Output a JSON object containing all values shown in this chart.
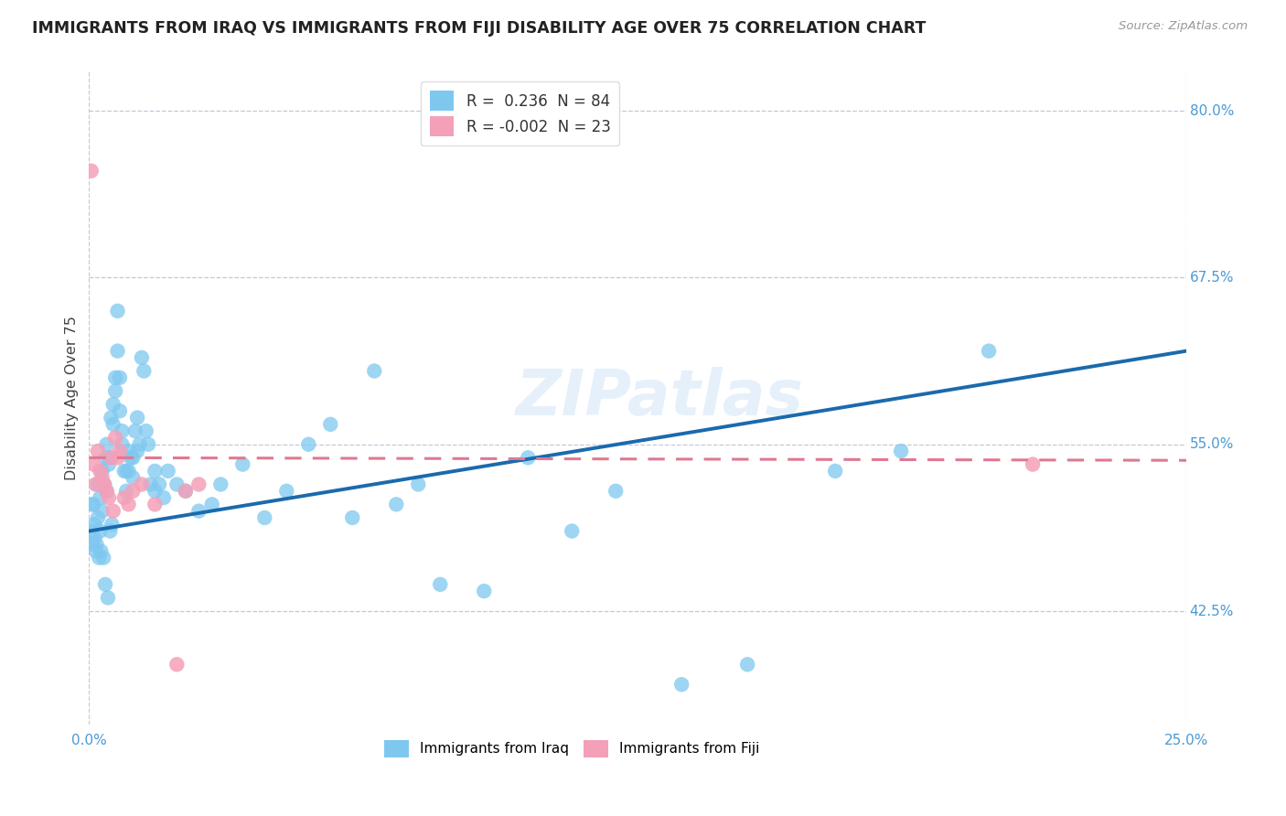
{
  "title": "IMMIGRANTS FROM IRAQ VS IMMIGRANTS FROM FIJI DISABILITY AGE OVER 75 CORRELATION CHART",
  "source": "Source: ZipAtlas.com",
  "ylabel": "Disability Age Over 75",
  "xlim": [
    0.0,
    25.0
  ],
  "ylim": [
    34.0,
    83.0
  ],
  "y_ticks": [
    42.5,
    55.0,
    67.5,
    80.0
  ],
  "y_tick_labels": [
    "42.5%",
    "55.0%",
    "67.5%",
    "80.0%"
  ],
  "legend_iraq": "R =  0.236  N = 84",
  "legend_fiji": "R = -0.002  N = 23",
  "iraq_color": "#7ec8f0",
  "fiji_color": "#f4a0b8",
  "iraq_line_color": "#1a6aad",
  "fiji_line_color": "#e07890",
  "watermark": "ZIPatlas",
  "iraq_scatter_x": [
    0.05,
    0.08,
    0.1,
    0.12,
    0.15,
    0.2,
    0.2,
    0.25,
    0.25,
    0.3,
    0.3,
    0.35,
    0.38,
    0.4,
    0.4,
    0.45,
    0.5,
    0.5,
    0.55,
    0.55,
    0.6,
    0.6,
    0.65,
    0.65,
    0.7,
    0.7,
    0.75,
    0.75,
    0.8,
    0.85,
    0.85,
    0.9,
    0.9,
    0.95,
    1.0,
    1.0,
    1.05,
    1.1,
    1.1,
    1.15,
    1.2,
    1.25,
    1.3,
    1.35,
    1.4,
    1.5,
    1.5,
    1.6,
    1.7,
    1.8,
    2.0,
    2.2,
    2.5,
    2.8,
    3.0,
    3.5,
    4.0,
    4.5,
    5.0,
    5.5,
    6.0,
    6.5,
    7.0,
    7.5,
    8.0,
    9.0,
    10.0,
    11.0,
    12.0,
    13.5,
    15.0,
    17.0,
    18.5,
    20.5,
    0.07,
    0.13,
    0.17,
    0.23,
    0.27,
    0.33,
    0.37,
    0.43,
    0.48,
    0.52
  ],
  "iraq_scatter_y": [
    48.5,
    47.5,
    50.5,
    49.0,
    47.0,
    49.5,
    52.0,
    48.5,
    51.0,
    50.0,
    53.0,
    52.0,
    54.0,
    51.5,
    55.0,
    53.5,
    57.0,
    54.0,
    58.0,
    56.5,
    60.0,
    59.0,
    65.0,
    62.0,
    60.0,
    57.5,
    56.0,
    55.0,
    53.0,
    51.5,
    53.0,
    53.0,
    54.5,
    54.0,
    54.0,
    52.5,
    56.0,
    57.0,
    54.5,
    55.0,
    61.5,
    60.5,
    56.0,
    55.0,
    52.0,
    51.5,
    53.0,
    52.0,
    51.0,
    53.0,
    52.0,
    51.5,
    50.0,
    50.5,
    52.0,
    53.5,
    49.5,
    51.5,
    55.0,
    56.5,
    49.5,
    60.5,
    50.5,
    52.0,
    44.5,
    44.0,
    54.0,
    48.5,
    51.5,
    37.0,
    38.5,
    53.0,
    54.5,
    62.0,
    50.5,
    48.0,
    47.5,
    46.5,
    47.0,
    46.5,
    44.5,
    43.5,
    48.5,
    49.0
  ],
  "fiji_scatter_x": [
    0.05,
    0.1,
    0.15,
    0.2,
    0.25,
    0.3,
    0.35,
    0.4,
    0.45,
    0.5,
    0.55,
    0.6,
    0.65,
    0.7,
    0.8,
    0.9,
    1.0,
    1.2,
    1.5,
    2.0,
    2.2,
    2.5,
    21.5
  ],
  "fiji_scatter_y": [
    75.5,
    53.5,
    52.0,
    54.5,
    53.0,
    52.5,
    52.0,
    51.5,
    51.0,
    54.0,
    50.0,
    55.5,
    54.0,
    54.5,
    51.0,
    50.5,
    51.5,
    52.0,
    50.5,
    38.5,
    51.5,
    52.0,
    53.5
  ],
  "iraq_trend_x0": 0.0,
  "iraq_trend_x1": 25.0,
  "iraq_trend_y0": 48.5,
  "iraq_trend_y1": 62.0,
  "fiji_trend_x0": 0.0,
  "fiji_trend_x1": 25.0,
  "fiji_trend_y0": 54.0,
  "fiji_trend_y1": 53.8
}
